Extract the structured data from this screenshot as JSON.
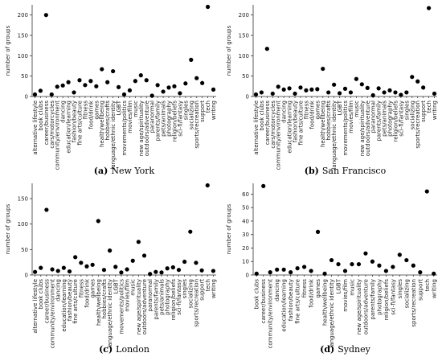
{
  "chart_data": [
    {
      "type": "scatter",
      "caption_label": "(a)",
      "caption": "New York",
      "ylabel": "number of groups",
      "color": "#000000",
      "categories": [
        "alternative lifestyle",
        "book clubs",
        "career/business",
        "cars/motorcycles",
        "community/environment",
        "dancing",
        "education/learning",
        "fashion/beauty",
        "fine arts/culture",
        "fitness",
        "food/drink",
        "games",
        "health/wellbeing",
        "hobbies/crafts",
        "language/ethnic identity",
        "LGBT",
        "movements/politics",
        "movies/film",
        "music",
        "new age/spirituality",
        "outdoors/adventure",
        "paranormal",
        "parents/family",
        "pets/animals",
        "photography",
        "religion/beliefs",
        "sci-fi/fantasy",
        "singles",
        "socializing",
        "sports/recreation",
        "support",
        "tech",
        "writing"
      ],
      "values": [
        5,
        14,
        200,
        5,
        24,
        27,
        35,
        10,
        40,
        28,
        38,
        25,
        67,
        35,
        62,
        23,
        5,
        15,
        38,
        52,
        40,
        2,
        28,
        12,
        22,
        25,
        8,
        32,
        90,
        45,
        33,
        220,
        17
      ],
      "ylim": [
        0,
        225
      ],
      "yticks": [
        0,
        50,
        100,
        150,
        200
      ]
    },
    {
      "type": "scatter",
      "caption_label": "(b)",
      "caption": "San Francisco",
      "ylabel": "number of groups",
      "color": "#000000",
      "categories": [
        "alternative lifestyle",
        "book clubs",
        "career/business",
        "cars/motorcycles",
        "community/environment",
        "dancing",
        "education/learning",
        "fashion/beauty",
        "fine arts/culture",
        "fitness",
        "food/drink",
        "games",
        "health/wellbeing",
        "hobbies/crafts",
        "language/ethnic identity",
        "LGBT",
        "movements/politics",
        "movies/film",
        "music",
        "new age/spirituality",
        "outdoors/adventure",
        "paranormal",
        "parents/family",
        "pets/animals",
        "photography",
        "religion/beliefs",
        "sci-fi/fantasy",
        "singles",
        "socializing",
        "sports/recreation",
        "support",
        "tech",
        "writing"
      ],
      "values": [
        5,
        10,
        117,
        7,
        24,
        17,
        20,
        7,
        22,
        15,
        17,
        18,
        68,
        10,
        29,
        8,
        19,
        10,
        43,
        30,
        21,
        3,
        20,
        10,
        15,
        10,
        4,
        10,
        48,
        37,
        22,
        217,
        7
      ],
      "ylim": [
        0,
        225
      ],
      "yticks": [
        0,
        50,
        100,
        150,
        200
      ]
    },
    {
      "type": "scatter",
      "caption_label": "(c)",
      "caption": "London",
      "ylabel": "number of groups",
      "color": "#000000",
      "categories": [
        "alternative lifestyle",
        "book clubs",
        "career/business",
        "community/environment",
        "dancing",
        "education/learning",
        "fashion/beauty",
        "fine arts/culture",
        "fitness",
        "food/drink",
        "games",
        "health/wellbeing",
        "hobbies/crafts",
        "language/ethnic identity",
        "LGBT",
        "movements/politics",
        "movies/film",
        "music",
        "new age/spirituality",
        "outdoors/adventure",
        "paranormal",
        "parents/family",
        "pets/animals",
        "photography",
        "religion/beliefs",
        "sci-fi/fantasy",
        "singles",
        "socializing",
        "sports/recreation",
        "support",
        "tech",
        "writing"
      ],
      "values": [
        6,
        14,
        128,
        11,
        8,
        14,
        7,
        35,
        24,
        17,
        20,
        106,
        10,
        48,
        16,
        5,
        11,
        28,
        65,
        38,
        2,
        6,
        5,
        13,
        15,
        10,
        26,
        85,
        24,
        9,
        176,
        8
      ],
      "ylim": [
        0,
        180
      ],
      "yticks": [
        0,
        50,
        100,
        150
      ]
    },
    {
      "type": "scatter",
      "caption_label": "(d)",
      "caption": "Sydney",
      "ylabel": "number of groups",
      "color": "#000000",
      "categories": [
        "book clubs",
        "career/business",
        "community/environment",
        "dancing",
        "education/learning",
        "fashion/beauty",
        "fine arts/culture",
        "fitness",
        "food/drink",
        "games",
        "health/wellbeing",
        "language/ethnic identity",
        "LGBT",
        "movies/film",
        "music",
        "new age/spirituality",
        "outdoors/adventure",
        "parents/family",
        "photography",
        "religion/beliefs",
        "sci-fi/fantasy",
        "singles",
        "socializing",
        "sports/recreation",
        "support",
        "tech",
        "writing"
      ],
      "values": [
        1,
        66,
        2,
        4,
        4,
        2,
        5,
        6,
        3,
        32,
        1,
        11,
        8,
        3,
        8,
        8,
        16,
        10,
        7,
        3,
        6,
        15,
        11,
        7,
        2,
        62,
        1
      ],
      "ylim": [
        0,
        68
      ],
      "yticks": [
        0,
        10,
        20,
        30,
        40,
        50,
        60
      ]
    }
  ]
}
